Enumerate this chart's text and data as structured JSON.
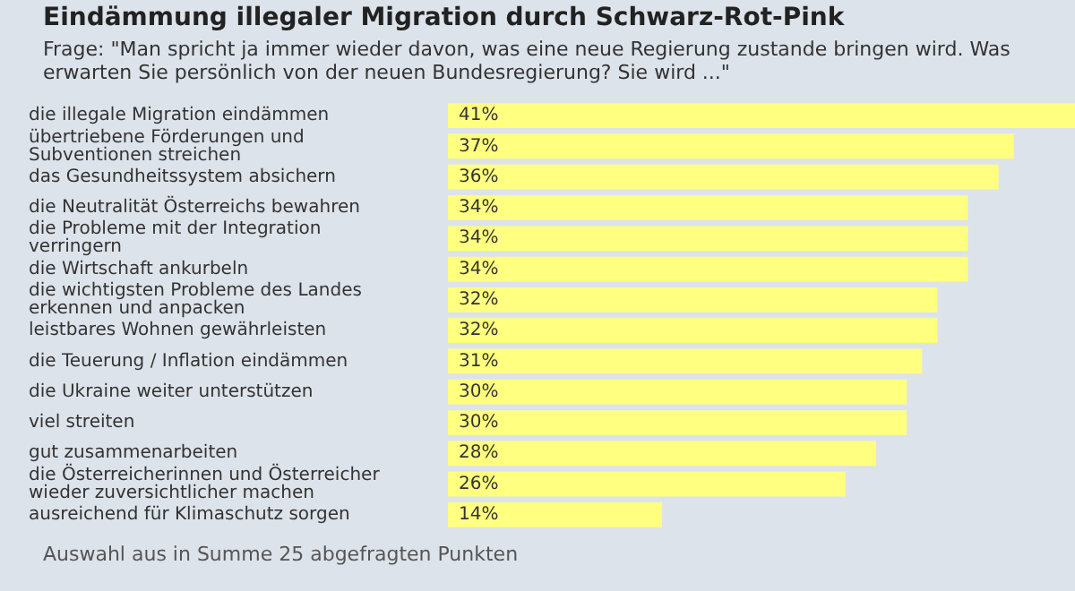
{
  "chart_data": {
    "type": "bar",
    "orientation": "horizontal",
    "title": "Eindämmung illegaler Migration durch Schwarz-Rot-Pink",
    "subtitle": "Frage: \"Man spricht ja immer wieder davon, was eine neue Regierung zustande bringen wird. Was erwarten Sie persönlich von der neuen Bundesregierung? Sie wird ...\"",
    "categories": [
      "die illegale Migration eindämmen",
      "übertriebene Förderungen und Subventionen streichen",
      "das Gesundheitssystem absichern",
      "die Neutralität Österreichs bewahren",
      "die Probleme mit der Integration verringern",
      "die Wirtschaft ankurbeln",
      "die wichtigsten Probleme des Landes erkennen und anpacken",
      "leistbares Wohnen gewährleisten",
      "die Teuerung / Inflation eindämmen",
      "die Ukraine weiter unterstützen",
      "viel streiten",
      "gut zusammenarbeiten",
      "die Österreicherinnen und Österreicher wieder zuversichtlicher machen",
      "ausreichend für Klimaschutz sorgen"
    ],
    "values": [
      41,
      37,
      36,
      34,
      34,
      34,
      32,
      32,
      31,
      30,
      30,
      28,
      26,
      14
    ],
    "value_labels": [
      "41%",
      "37%",
      "36%",
      "34%",
      "34%",
      "34%",
      "32%",
      "32%",
      "31%",
      "30%",
      "30%",
      "28%",
      "26%",
      "14%"
    ],
    "color": "#ffff80",
    "annotations": [
      "Auswahl aus in Summe 25 abgefragten Punkten"
    ],
    "legend": false
  }
}
